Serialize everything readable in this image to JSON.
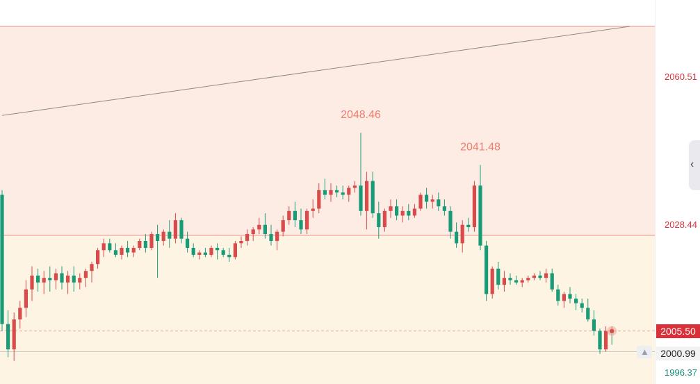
{
  "chart_data": {
    "type": "candlestick",
    "y_range": [
      1994.0,
      2071.5
    ],
    "zones": {
      "resistance_band": {
        "from": 2026.22,
        "to": 2071.5,
        "color": "#fdece4"
      },
      "support_band": {
        "from": 1994.0,
        "to": 2026.22,
        "color": "#fef4e4"
      }
    },
    "levels": {
      "upper_line": 2071.5,
      "mid_line": 2026.22,
      "current": 2005.5,
      "reference": 2000.99
    },
    "trendline": {
      "from_bar": 0,
      "to_bar": 105,
      "from_value": 2052.2,
      "to_value": 2071.5
    },
    "axis_ticks": [
      {
        "value": 2060.51,
        "label": "2060.51",
        "tone": "red"
      },
      {
        "value": 2028.44,
        "label": "2028.44",
        "tone": "red"
      },
      {
        "value": 1996.37,
        "label": "1996.37",
        "tone": "green"
      }
    ],
    "high_labels": [
      {
        "bar": 60,
        "value": 2048.46,
        "label": "2048.46"
      },
      {
        "bar": 80,
        "value": 2041.48,
        "label": "2041.48"
      }
    ],
    "candles": [
      [
        2035.0,
        2036.0,
        2005.5,
        2007.0
      ],
      [
        2007.0,
        2010.0,
        1999.8,
        2001.5
      ],
      [
        2001.5,
        2009.5,
        1999.0,
        2008.0
      ],
      [
        2008.0,
        2012.0,
        2006.0,
        2010.5
      ],
      [
        2010.5,
        2016.5,
        2008.5,
        2014.5
      ],
      [
        2014.5,
        2019.5,
        2012.0,
        2017.5
      ],
      [
        2017.5,
        2019.0,
        2014.0,
        2016.0
      ],
      [
        2016.0,
        2018.5,
        2013.5,
        2017.0
      ],
      [
        2017.0,
        2019.5,
        2014.0,
        2016.5
      ],
      [
        2016.5,
        2019.0,
        2014.5,
        2018.0
      ],
      [
        2018.0,
        2019.5,
        2014.5,
        2016.0
      ],
      [
        2016.0,
        2018.5,
        2013.5,
        2017.5
      ],
      [
        2017.5,
        2019.5,
        2014.0,
        2016.0
      ],
      [
        2016.0,
        2018.0,
        2014.5,
        2017.0
      ],
      [
        2017.0,
        2019.0,
        2015.0,
        2018.5
      ],
      [
        2018.5,
        2020.5,
        2016.0,
        2020.0
      ],
      [
        2020.0,
        2023.5,
        2019.0,
        2023.0
      ],
      [
        2023.0,
        2025.5,
        2021.5,
        2024.5
      ],
      [
        2024.5,
        2025.5,
        2022.5,
        2023.0
      ],
      [
        2023.0,
        2024.5,
        2021.5,
        2022.0
      ],
      [
        2022.0,
        2024.0,
        2021.0,
        2023.5
      ],
      [
        2023.5,
        2025.0,
        2021.5,
        2022.5
      ],
      [
        2022.5,
        2024.0,
        2021.5,
        2023.5
      ],
      [
        2023.5,
        2025.5,
        2023.0,
        2025.0
      ],
      [
        2025.0,
        2026.5,
        2022.5,
        2023.5
      ],
      [
        2023.5,
        2027.0,
        2023.0,
        2026.5
      ],
      [
        2026.5,
        2028.5,
        2017.0,
        2025.0
      ],
      [
        2025.0,
        2027.5,
        2024.0,
        2027.0
      ],
      [
        2027.0,
        2029.5,
        2023.5,
        2025.5
      ],
      [
        2025.5,
        2031.0,
        2024.5,
        2029.5
      ],
      [
        2029.5,
        2030.0,
        2024.5,
        2025.5
      ],
      [
        2025.5,
        2027.0,
        2022.5,
        2023.5
      ],
      [
        2023.5,
        2024.5,
        2021.5,
        2022.0
      ],
      [
        2022.0,
        2023.0,
        2021.0,
        2022.5
      ],
      [
        2022.5,
        2023.5,
        2021.5,
        2022.0
      ],
      [
        2022.0,
        2024.0,
        2021.5,
        2023.5
      ],
      [
        2023.5,
        2024.5,
        2021.0,
        2023.0
      ],
      [
        2023.0,
        2023.5,
        2021.5,
        2022.0
      ],
      [
        2022.0,
        2023.5,
        2020.5,
        2021.5
      ],
      [
        2021.5,
        2025.0,
        2021.0,
        2024.5
      ],
      [
        2024.5,
        2026.0,
        2023.5,
        2025.0
      ],
      [
        2025.0,
        2027.5,
        2024.0,
        2026.5
      ],
      [
        2026.5,
        2028.0,
        2025.0,
        2027.5
      ],
      [
        2027.5,
        2030.0,
        2026.5,
        2028.5
      ],
      [
        2028.5,
        2031.0,
        2025.5,
        2026.5
      ],
      [
        2026.5,
        2028.5,
        2024.0,
        2025.0
      ],
      [
        2025.0,
        2027.5,
        2023.0,
        2027.0
      ],
      [
        2027.0,
        2030.5,
        2026.0,
        2029.5
      ],
      [
        2029.5,
        2032.5,
        2028.5,
        2031.5
      ],
      [
        2031.5,
        2033.5,
        2028.0,
        2029.5
      ],
      [
        2029.5,
        2032.0,
        2026.5,
        2027.5
      ],
      [
        2027.5,
        2032.0,
        2026.5,
        2031.5
      ],
      [
        2031.5,
        2034.0,
        2030.0,
        2032.0
      ],
      [
        2032.0,
        2037.5,
        2031.0,
        2036.0
      ],
      [
        2036.0,
        2038.5,
        2034.0,
        2035.0
      ],
      [
        2035.0,
        2037.5,
        2033.5,
        2036.0
      ],
      [
        2036.0,
        2037.0,
        2034.5,
        2035.5
      ],
      [
        2035.5,
        2037.0,
        2034.0,
        2035.0
      ],
      [
        2035.0,
        2037.0,
        2033.5,
        2036.5
      ],
      [
        2036.5,
        2038.0,
        2035.5,
        2037.0
      ],
      [
        2037.0,
        2048.46,
        2030.5,
        2031.5
      ],
      [
        2031.5,
        2040.0,
        2027.5,
        2038.0
      ],
      [
        2038.0,
        2040.0,
        2030.0,
        2031.0
      ],
      [
        2031.0,
        2033.5,
        2025.5,
        2028.0
      ],
      [
        2028.0,
        2032.0,
        2027.0,
        2031.5
      ],
      [
        2031.5,
        2034.0,
        2030.0,
        2032.5
      ],
      [
        2032.5,
        2034.0,
        2029.5,
        2030.5
      ],
      [
        2030.5,
        2032.5,
        2029.0,
        2031.5
      ],
      [
        2031.5,
        2033.0,
        2029.5,
        2030.5
      ],
      [
        2030.5,
        2033.0,
        2030.0,
        2032.0
      ],
      [
        2032.0,
        2035.5,
        2031.5,
        2035.0
      ],
      [
        2035.0,
        2036.5,
        2032.0,
        2033.5
      ],
      [
        2033.5,
        2035.0,
        2032.0,
        2034.0
      ],
      [
        2034.0,
        2035.5,
        2031.5,
        2032.5
      ],
      [
        2032.5,
        2034.0,
        2030.5,
        2031.5
      ],
      [
        2031.5,
        2032.5,
        2025.5,
        2027.0
      ],
      [
        2027.0,
        2029.0,
        2023.5,
        2024.5
      ],
      [
        2024.5,
        2029.5,
        2022.5,
        2028.5
      ],
      [
        2028.5,
        2030.0,
        2027.0,
        2028.0
      ],
      [
        2028.0,
        2038.0,
        2027.0,
        2037.0
      ],
      [
        2037.0,
        2041.48,
        2023.0,
        2024.0
      ],
      [
        2024.0,
        2025.0,
        2012.0,
        2013.5
      ],
      [
        2013.5,
        2019.5,
        2012.5,
        2019.0
      ],
      [
        2019.0,
        2020.5,
        2014.5,
        2015.5
      ],
      [
        2015.5,
        2018.5,
        2014.0,
        2017.0
      ],
      [
        2017.0,
        2018.0,
        2015.5,
        2016.5
      ],
      [
        2016.5,
        2017.5,
        2015.5,
        2016.0
      ],
      [
        2016.0,
        2017.0,
        2015.0,
        2016.5
      ],
      [
        2016.5,
        2017.5,
        2016.0,
        2017.0
      ],
      [
        2017.0,
        2018.0,
        2016.5,
        2017.5
      ],
      [
        2017.5,
        2018.5,
        2016.5,
        2017.0
      ],
      [
        2017.0,
        2019.0,
        2016.0,
        2018.0
      ],
      [
        2018.0,
        2019.0,
        2014.0,
        2014.5
      ],
      [
        2014.5,
        2015.5,
        2011.0,
        2012.0
      ],
      [
        2012.0,
        2014.0,
        2010.5,
        2013.5
      ],
      [
        2013.5,
        2015.0,
        2011.5,
        2012.5
      ],
      [
        2012.5,
        2013.5,
        2010.0,
        2011.5
      ],
      [
        2011.5,
        2012.5,
        2009.5,
        2010.5
      ],
      [
        2010.5,
        2012.5,
        2007.5,
        2008.0
      ],
      [
        2008.0,
        2010.0,
        2004.5,
        2005.5
      ],
      [
        2005.5,
        2006.0,
        2000.5,
        2001.5
      ],
      [
        2001.5,
        2006.5,
        2001.0,
        2005.5
      ],
      [
        2005.5,
        2006.5,
        2002.5,
        2005.0
      ]
    ],
    "colors": {
      "up": "#d94b4b",
      "down": "#1a9b78",
      "line": "#f0a49c",
      "trend": "#8e8a86",
      "tick_red": "#d9303a",
      "tick_green": "#13917a"
    }
  }
}
